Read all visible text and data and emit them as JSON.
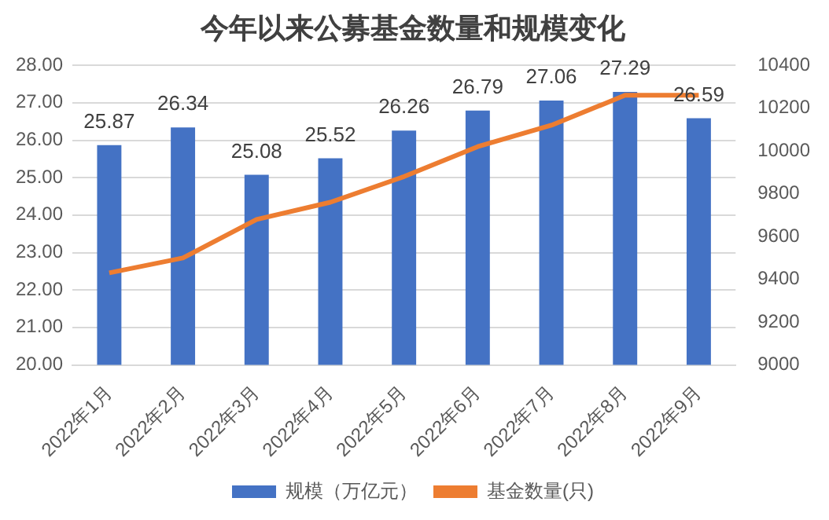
{
  "chart_data": {
    "type": "bar",
    "title": "今年以来公募基金数量和规模变化",
    "categories": [
      "2022年1月",
      "2022年2月",
      "2022年3月",
      "2022年4月",
      "2022年5月",
      "2022年6月",
      "2022年7月",
      "2022年8月",
      "2022年9月"
    ],
    "series": [
      {
        "name": "规模（万亿元）",
        "color": "#4472c4",
        "values": [
          25.87,
          26.34,
          25.08,
          25.52,
          26.26,
          26.79,
          27.06,
          27.29,
          26.59
        ],
        "value_labels": [
          "25.87",
          "26.34",
          "25.08",
          "25.52",
          "26.26",
          "26.79",
          "27.06",
          "27.29",
          "26.59"
        ]
      },
      {
        "name": "基金数量(只)",
        "type": "line",
        "axis": "y2",
        "color": "#ed7d31",
        "marker": "none",
        "values": [
          9430,
          9500,
          9680,
          9760,
          9880,
          10020,
          10120,
          10260,
          10260
        ]
      }
    ],
    "ylim": [
      20,
      28
    ],
    "yticks": [
      {
        "value": 20,
        "label": "20.00"
      },
      {
        "value": 21,
        "label": "21.00"
      },
      {
        "value": 22,
        "label": "22.00"
      },
      {
        "value": 23,
        "label": "23.00"
      },
      {
        "value": 24,
        "label": "24.00"
      },
      {
        "value": 25,
        "label": "25.00"
      },
      {
        "value": 26,
        "label": "26.00"
      },
      {
        "value": 27,
        "label": "27.00"
      },
      {
        "value": 28,
        "label": "28.00"
      }
    ],
    "y2lim": [
      9000,
      10400
    ],
    "y2ticks": [
      9000,
      9200,
      9400,
      9600,
      9800,
      10000,
      10200,
      10400
    ],
    "grid": "y",
    "legend": "bottom"
  }
}
